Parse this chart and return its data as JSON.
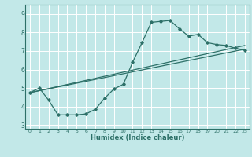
{
  "xlabel": "Humidex (Indice chaleur)",
  "ylabel": "",
  "bg_color": "#c2e8e8",
  "grid_color": "#ffffff",
  "line_color": "#2d7068",
  "xlim": [
    -0.5,
    23.5
  ],
  "ylim": [
    2.8,
    9.5
  ],
  "xticks": [
    0,
    1,
    2,
    3,
    4,
    5,
    6,
    7,
    8,
    9,
    10,
    11,
    12,
    13,
    14,
    15,
    16,
    17,
    18,
    19,
    20,
    21,
    22,
    23
  ],
  "yticks": [
    3,
    4,
    5,
    6,
    7,
    8,
    9
  ],
  "curve1_x": [
    0,
    1,
    2,
    3,
    4,
    5,
    6,
    7,
    8,
    9,
    10,
    11,
    12,
    13,
    14,
    15,
    16,
    17,
    18,
    19,
    20,
    21,
    22,
    23
  ],
  "curve1_y": [
    4.75,
    5.0,
    4.35,
    3.55,
    3.55,
    3.55,
    3.6,
    3.85,
    4.45,
    4.95,
    5.2,
    6.4,
    7.45,
    8.55,
    8.6,
    8.65,
    8.2,
    7.8,
    7.9,
    7.45,
    7.35,
    7.3,
    7.15,
    7.05
  ],
  "line1_x": [
    0,
    23
  ],
  "line1_y": [
    4.75,
    7.1
  ],
  "line2_x": [
    0,
    23
  ],
  "line2_y": [
    4.75,
    7.3
  ]
}
